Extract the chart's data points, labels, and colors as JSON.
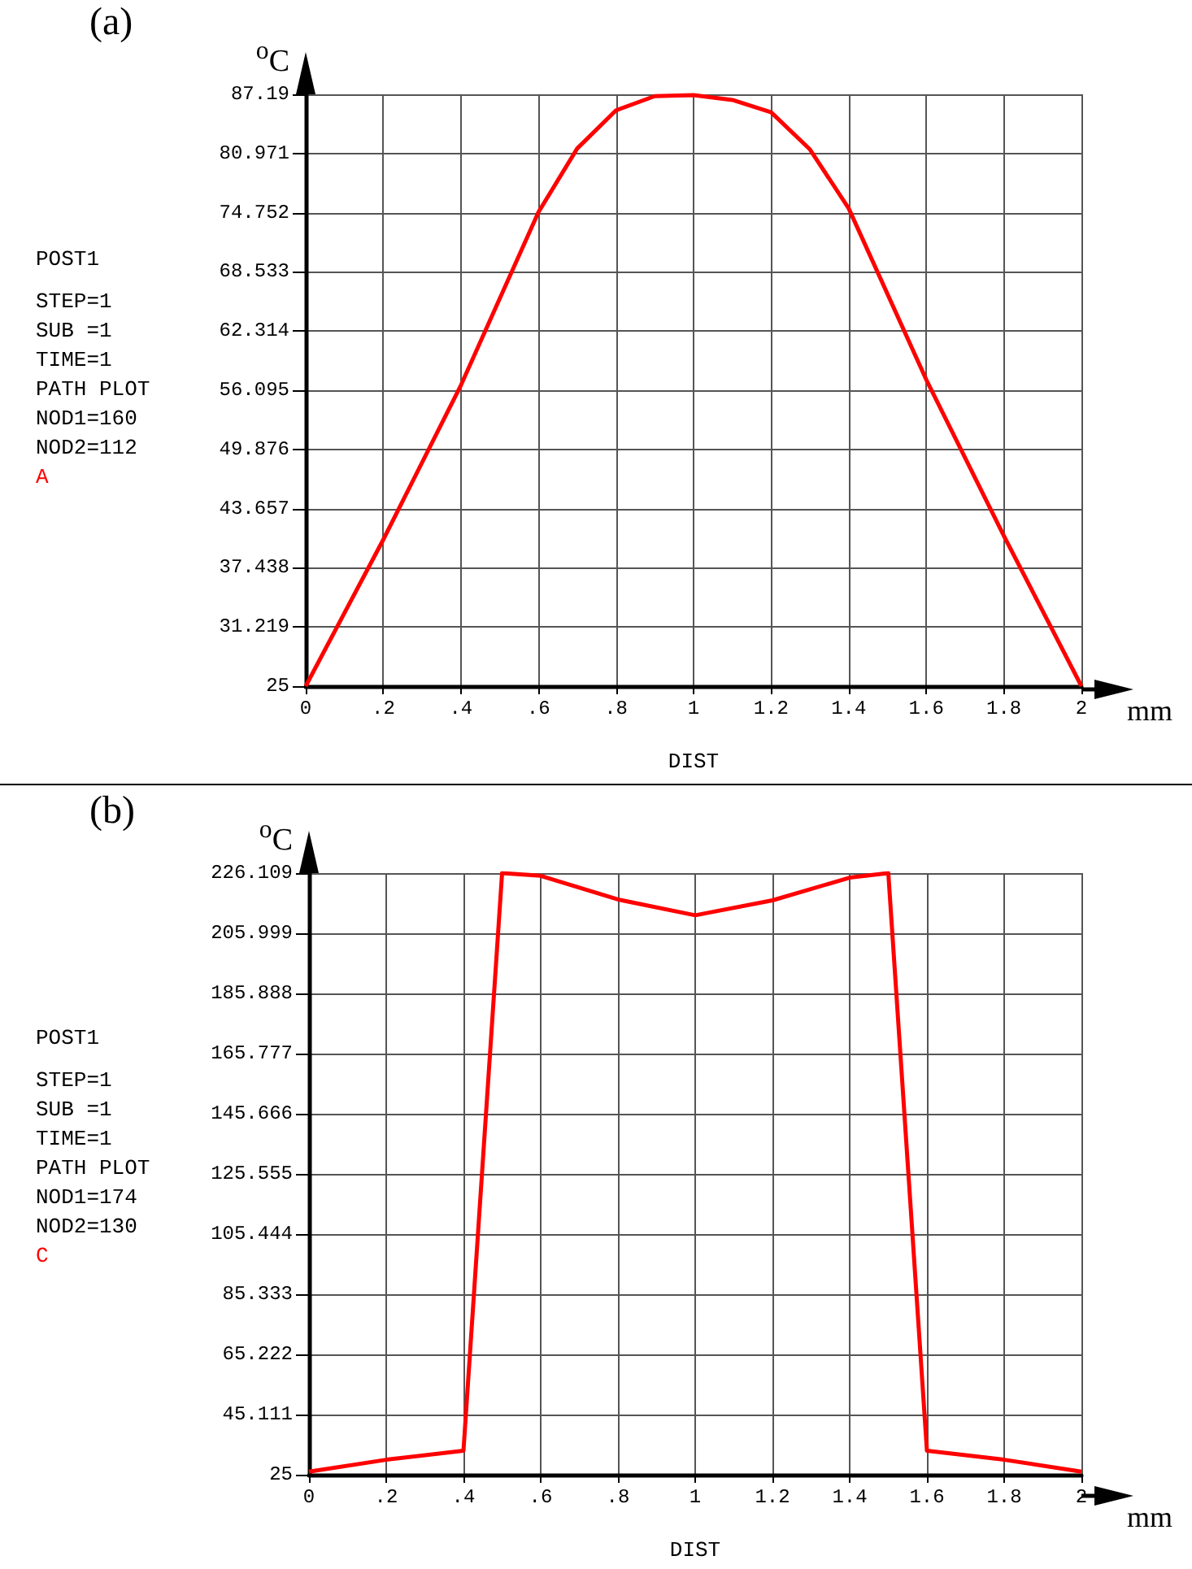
{
  "chart_data": [
    {
      "type": "line",
      "title": "(a)",
      "xlabel": "DIST",
      "ylabel": "$^{o}$C",
      "annotations": [
        "mm",
        "POST1",
        "STEP=1",
        "SUB =1",
        "TIME=1",
        "PATH PLOT",
        "NOD1=160",
        "NOD2=112",
        "A"
      ],
      "series": [
        {
          "color": "#ff0000",
          "x": [
            0,
            0.2,
            0.4,
            0.6,
            0.7,
            0.8,
            0.9,
            1.0,
            1.1,
            1.2,
            1.3,
            1.4,
            1.6,
            1.8,
            2.0
          ],
          "values": [
            25,
            40.4,
            56.6,
            74.8,
            81.5,
            85.5,
            87.0,
            87.1,
            86.6,
            85.3,
            81.4,
            75.2,
            57.2,
            40.8,
            25
          ]
        }
      ],
      "xlim": [
        0,
        2
      ],
      "xticks": [
        0,
        {
          "value": 0.2,
          "label": ".2"
        },
        {
          "value": 0.4,
          "label": ".4"
        },
        {
          "value": 0.6,
          "label": ".6"
        },
        {
          "value": 0.8,
          "label": ".8"
        },
        1,
        1.2,
        1.4,
        1.6,
        1.8,
        2
      ],
      "ylim": [
        25,
        87.19
      ],
      "yticks": [
        25,
        31.219,
        37.438,
        43.657,
        49.876,
        56.095,
        62.314,
        68.533,
        74.752,
        80.971,
        87.19
      ],
      "grid": true,
      "marker": "none",
      "line_style": "solid"
    },
    {
      "type": "line",
      "title": "(b)",
      "xlabel": "DIST",
      "ylabel": "$^{o}$C",
      "annotations": [
        "mm",
        "POST1",
        "STEP=1",
        "SUB =1",
        "TIME=1",
        "PATH PLOT",
        "NOD1=174",
        "NOD2=130",
        "C"
      ],
      "series": [
        {
          "color": "#ff0000",
          "x": [
            0,
            0.2,
            0.4,
            0.5,
            0.6,
            0.8,
            1.0,
            1.2,
            1.4,
            1.5,
            1.6,
            1.8,
            2.0
          ],
          "values": [
            26,
            30,
            33,
            226.1,
            225.2,
            217.3,
            212,
            217,
            224.6,
            226.1,
            33,
            30,
            26
          ]
        }
      ],
      "xlim": [
        0,
        2
      ],
      "xticks": [
        0,
        {
          "value": 0.2,
          "label": ".2"
        },
        {
          "value": 0.4,
          "label": ".4"
        },
        {
          "value": 0.6,
          "label": ".6"
        },
        {
          "value": 0.8,
          "label": ".8"
        },
        1,
        1.2,
        1.4,
        1.6,
        1.8,
        2
      ],
      "ylim": [
        25,
        226.109
      ],
      "yticks": [
        25,
        45.111,
        65.222,
        85.333,
        105.444,
        125.555,
        145.666,
        165.777,
        185.888,
        205.999,
        226.109
      ],
      "grid": true,
      "marker": "none",
      "line_style": "solid"
    }
  ]
}
